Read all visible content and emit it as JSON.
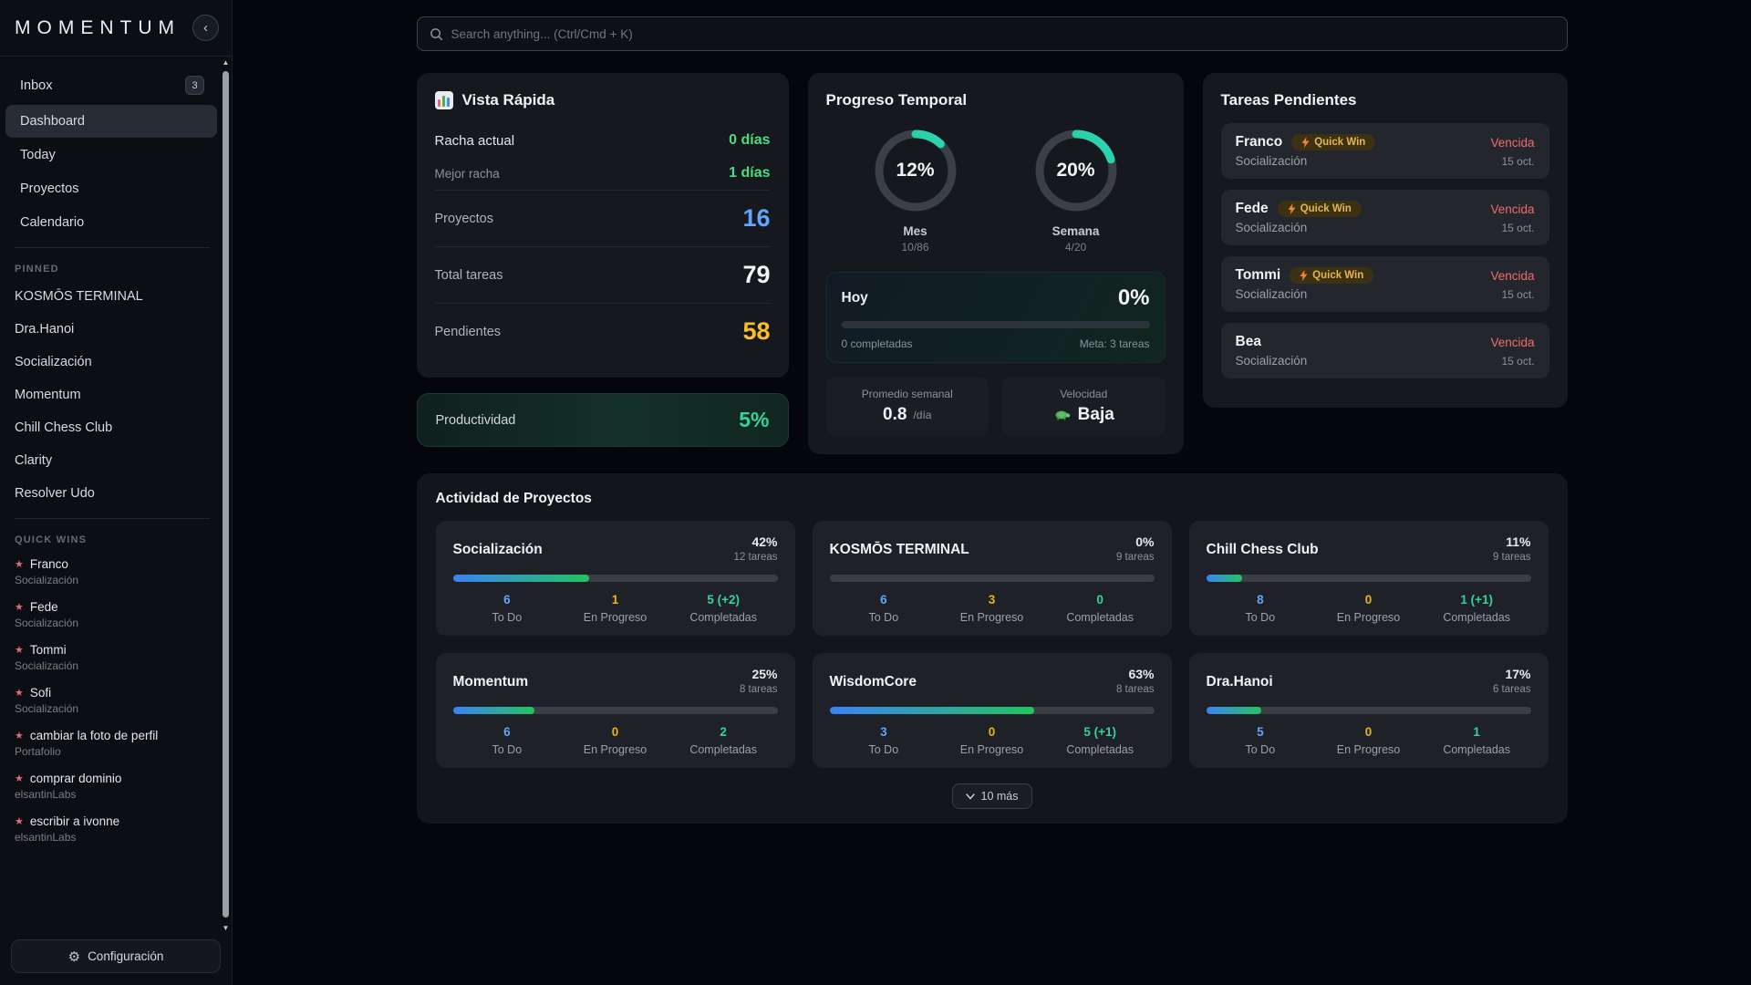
{
  "colors": {
    "accent_green": "#34d399",
    "accent_blue": "#60a5fa",
    "accent_yellow": "#fbbf24",
    "accent_red": "#ef6d6d",
    "bar_gradient_start": "#3b82f6",
    "bar_gradient_end": "#22c55e"
  },
  "sidebar": {
    "logo": "MOMENTUM",
    "collapse_icon": "‹",
    "nav": [
      {
        "label": "Inbox",
        "badge": "3"
      },
      {
        "label": "Dashboard"
      },
      {
        "label": "Today"
      },
      {
        "label": "Proyectos"
      },
      {
        "label": "Calendario"
      }
    ],
    "pinned_label": "PINNED",
    "pinned": [
      "KOSMŌS TERMINAL",
      "Dra.Hanoi",
      "Socialización",
      "Momentum",
      "Chill Chess Club",
      "Clarity",
      "Resolver Udo"
    ],
    "quick_wins_label": "QUICK WINS",
    "star_icon": "★",
    "quick_wins": [
      {
        "title": "Franco",
        "project": "Socialización"
      },
      {
        "title": "Fede",
        "project": "Socialización"
      },
      {
        "title": "Tommi",
        "project": "Socialización"
      },
      {
        "title": "Sofi",
        "project": "Socialización"
      },
      {
        "title": "cambiar la foto de perfil",
        "project": "Portafolio"
      },
      {
        "title": "comprar dominio",
        "project": "elsantinLabs"
      },
      {
        "title": "escribir a ivonne",
        "project": "elsantinLabs"
      }
    ],
    "settings_label": "Configuración",
    "gear_icon": "⚙"
  },
  "search": {
    "placeholder": "Search anything... (Ctrl/Cmd + K)"
  },
  "quick_view": {
    "title": "Vista Rápida",
    "streak_label": "Racha actual",
    "streak_value": "0 días",
    "best_label": "Mejor racha",
    "best_value": "1 días",
    "projects_label": "Proyectos",
    "projects_value": "16",
    "tasks_label": "Total tareas",
    "tasks_value": "79",
    "pending_label": "Pendientes",
    "pending_value": "58"
  },
  "productivity": {
    "label": "Productividad",
    "value": "5%"
  },
  "temporal": {
    "title": "Progreso Temporal",
    "month": {
      "percent": 12,
      "percent_label": "12%",
      "label": "Mes",
      "fraction": "10/86"
    },
    "week": {
      "percent": 20,
      "percent_label": "20%",
      "label": "Semana",
      "fraction": "4/20"
    },
    "today": {
      "title": "Hoy",
      "percent": 0,
      "percent_label": "0%",
      "completed": "0 completadas",
      "goal": "Meta: 3 tareas"
    },
    "weekly_avg": {
      "label": "Promedio semanal",
      "value": "0.8",
      "unit": "/día"
    },
    "velocity": {
      "label": "Velocidad",
      "value": "Baja"
    }
  },
  "pending": {
    "title": "Tareas Pendientes",
    "badge_label": "Quick Win",
    "items": [
      {
        "name": "Franco",
        "project": "Socialización",
        "status": "Vencida",
        "date": "15 oct."
      },
      {
        "name": "Fede",
        "project": "Socialización",
        "status": "Vencida",
        "date": "15 oct."
      },
      {
        "name": "Tommi",
        "project": "Socialización",
        "status": "Vencida",
        "date": "15 oct."
      },
      {
        "name": "Bea",
        "project": "Socialización",
        "status": "Vencida",
        "date": "15 oct."
      }
    ]
  },
  "projects": {
    "title": "Actividad de Proyectos",
    "stat_labels": {
      "todo": "To Do",
      "in_progress": "En Progreso",
      "completed": "Completadas"
    },
    "items": [
      {
        "name": "Socialización",
        "percent": 42,
        "percent_label": "42%",
        "tasks": "12 tareas",
        "todo": "6",
        "in_progress": "1",
        "completed": "5 (+2)"
      },
      {
        "name": "KOSMŌS TERMINAL",
        "percent": 0,
        "percent_label": "0%",
        "tasks": "9 tareas",
        "todo": "6",
        "in_progress": "3",
        "completed": "0"
      },
      {
        "name": "Chill Chess Club",
        "percent": 11,
        "percent_label": "11%",
        "tasks": "9 tareas",
        "todo": "8",
        "in_progress": "0",
        "completed": "1 (+1)"
      },
      {
        "name": "Momentum",
        "percent": 25,
        "percent_label": "25%",
        "tasks": "8 tareas",
        "todo": "6",
        "in_progress": "0",
        "completed": "2"
      },
      {
        "name": "WisdomCore",
        "percent": 63,
        "percent_label": "63%",
        "tasks": "8 tareas",
        "todo": "3",
        "in_progress": "0",
        "completed": "5 (+1)"
      },
      {
        "name": "Dra.Hanoi",
        "percent": 17,
        "percent_label": "17%",
        "tasks": "6 tareas",
        "todo": "5",
        "in_progress": "0",
        "completed": "1"
      }
    ],
    "more_label": "10 más"
  }
}
